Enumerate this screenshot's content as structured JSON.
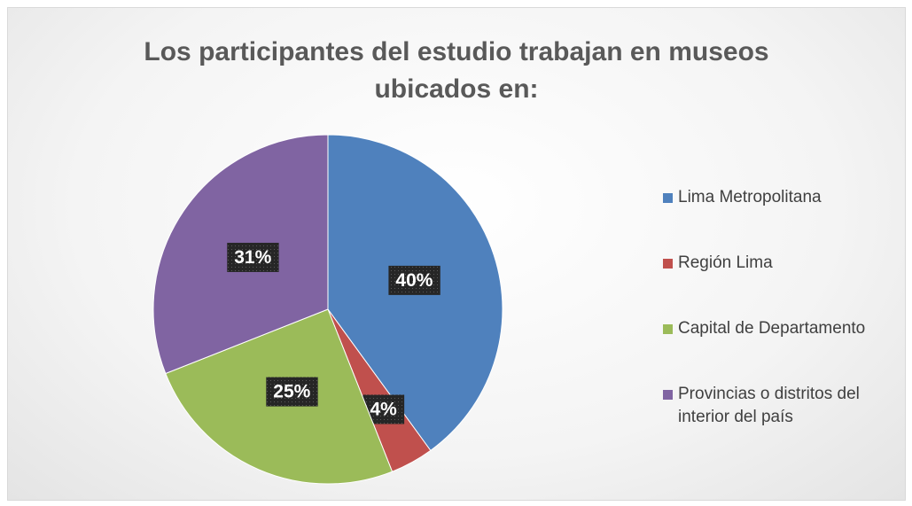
{
  "chart_data": {
    "type": "pie",
    "title": "Los participantes del estudio trabajan en museos ubicados en:",
    "categories": [
      "Lima Metropolitana",
      "Región Lima",
      "Capital de Departamento",
      "Provincias o distritos del interior del país"
    ],
    "values": [
      40,
      4,
      25,
      31
    ],
    "value_labels": [
      "40%",
      "4%",
      "25%",
      "31%"
    ],
    "colors": [
      "#4f81bd",
      "#c0504d",
      "#9bbb59",
      "#8064a2"
    ],
    "legend": "right"
  }
}
